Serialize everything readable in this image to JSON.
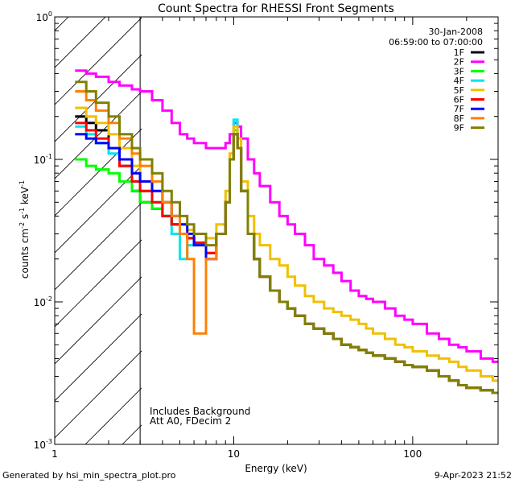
{
  "chart_data": {
    "type": "line",
    "title": "Count Spectra for RHESSI Front Segments",
    "xlabel": "Energy (keV)",
    "ylabel": "counts cm^-2 s^-1 keV^-1",
    "ylabel_parts": {
      "base": "counts cm",
      "e1": "-2",
      "mid1": " s",
      "e2": "-1",
      "mid2": " keV",
      "e3": "-1"
    },
    "xscale": "log",
    "yscale": "log",
    "xlim": [
      1,
      300
    ],
    "ylim": [
      0.001,
      1
    ],
    "x_ticks": [
      {
        "value": 1,
        "label": "1"
      },
      {
        "value": 10,
        "label": "10"
      },
      {
        "value": 100,
        "label": "100"
      }
    ],
    "y_ticks": [
      {
        "value": 0.001,
        "base": "10",
        "exp": "-3"
      },
      {
        "value": 0.01,
        "base": "10",
        "exp": "-2"
      },
      {
        "value": 0.1,
        "base": "10",
        "exp": "-1"
      },
      {
        "value": 1,
        "base": "10",
        "exp": "0"
      }
    ],
    "date": "30-Jan-2008",
    "time_range": "06:59:00 to 07:00:00",
    "legend_position": "top-right",
    "annotations": [
      "Includes Background",
      "Att A0, FDecim 2"
    ],
    "excluded_region_below_keV": 3,
    "series": [
      {
        "name": "1F",
        "color": "#000000",
        "x": [
          1.3,
          1.5,
          1.7,
          2.0,
          2.3,
          2.7,
          3.0,
          3.5,
          4.0,
          4.5,
          5.0,
          5.5,
          6.0,
          7.0,
          8.0,
          9.0,
          9.5,
          10.0,
          10.5,
          11.0,
          12,
          13,
          14,
          16,
          18,
          20,
          22,
          25,
          28,
          32,
          36,
          40,
          45,
          50,
          55,
          60,
          70,
          80,
          90,
          100,
          120,
          140,
          160,
          180,
          200,
          240,
          280
        ],
        "y": [
          0.2,
          0.18,
          0.16,
          0.12,
          0.09,
          0.06,
          0.05,
          0.045,
          0.04,
          0.035,
          0.03,
          0.028,
          0.026,
          0.022,
          0.03,
          0.05,
          0.1,
          0.15,
          0.12,
          0.06,
          0.03,
          0.02,
          0.015,
          0.012,
          0.01,
          0.009,
          0.008,
          0.007,
          0.0065,
          0.006,
          0.0055,
          0.005,
          0.0048,
          0.0046,
          0.0044,
          0.0042,
          0.004,
          0.0038,
          0.0036,
          0.0035,
          0.0033,
          0.003,
          0.0028,
          0.0026,
          0.0025,
          0.0024,
          0.0023
        ]
      },
      {
        "name": "2F",
        "color": "#ff00ff",
        "x": [
          1.3,
          1.5,
          1.7,
          2.0,
          2.3,
          2.7,
          3.0,
          3.5,
          4.0,
          4.5,
          5.0,
          5.5,
          6.0,
          7.0,
          8.0,
          9.0,
          9.5,
          10.0,
          10.5,
          11.0,
          12,
          13,
          14,
          16,
          18,
          20,
          22,
          25,
          28,
          32,
          36,
          40,
          45,
          50,
          55,
          60,
          70,
          80,
          90,
          100,
          120,
          140,
          160,
          180,
          200,
          240,
          280
        ],
        "y": [
          0.42,
          0.4,
          0.38,
          0.35,
          0.33,
          0.31,
          0.3,
          0.26,
          0.22,
          0.18,
          0.15,
          0.14,
          0.13,
          0.12,
          0.12,
          0.13,
          0.15,
          0.18,
          0.17,
          0.14,
          0.1,
          0.08,
          0.065,
          0.05,
          0.04,
          0.035,
          0.03,
          0.025,
          0.02,
          0.018,
          0.016,
          0.014,
          0.012,
          0.011,
          0.0105,
          0.01,
          0.009,
          0.008,
          0.0075,
          0.007,
          0.006,
          0.0055,
          0.005,
          0.0048,
          0.0045,
          0.004,
          0.0038
        ]
      },
      {
        "name": "3F",
        "color": "#00ff00",
        "x": [
          1.3,
          1.5,
          1.7,
          2.0,
          2.3,
          2.7,
          3.0,
          3.5,
          4.0,
          4.5,
          5.0,
          5.5,
          6.0,
          7.0,
          8.0,
          9.0,
          9.5,
          10.0,
          10.5,
          11.0,
          12,
          13,
          14,
          16,
          18,
          20,
          22,
          25,
          28,
          32,
          36,
          40,
          45,
          50,
          55,
          60,
          70,
          80,
          90,
          100,
          120,
          140,
          160,
          180,
          200,
          240,
          280
        ],
        "y": [
          0.1,
          0.09,
          0.085,
          0.08,
          0.07,
          0.06,
          0.05,
          0.045,
          0.04,
          0.035,
          0.03,
          0.028,
          0.026,
          0.022,
          0.03,
          0.05,
          0.1,
          0.16,
          0.12,
          0.06,
          0.03,
          0.02,
          0.015,
          0.012,
          0.01,
          0.009,
          0.008,
          0.007,
          0.0065,
          0.006,
          0.0055,
          0.005,
          0.0048,
          0.0046,
          0.0044,
          0.0042,
          0.004,
          0.0038,
          0.0036,
          0.0035,
          0.0033,
          0.003,
          0.0028,
          0.0026,
          0.0025,
          0.0024,
          0.0023
        ]
      },
      {
        "name": "4F",
        "color": "#00e5ee",
        "x": [
          1.3,
          1.5,
          1.7,
          2.0,
          2.3,
          2.7,
          3.0,
          3.5,
          4.0,
          4.5,
          5.0,
          5.5,
          6.0,
          7.0,
          8.0,
          9.0,
          9.5,
          10.0,
          10.5,
          11.0,
          12,
          13,
          14,
          16,
          18,
          20,
          22,
          25,
          28,
          32,
          36,
          40,
          45,
          50,
          55,
          60,
          70,
          80,
          90,
          100,
          120,
          140,
          160,
          180,
          200,
          240,
          280
        ],
        "y": [
          0.17,
          0.15,
          0.13,
          0.11,
          0.09,
          0.07,
          0.06,
          0.05,
          0.04,
          0.03,
          0.02,
          0.025,
          0.026,
          0.022,
          0.03,
          0.05,
          0.1,
          0.19,
          0.12,
          0.06,
          0.03,
          0.02,
          0.015,
          0.012,
          0.01,
          0.009,
          0.008,
          0.007,
          0.0065,
          0.006,
          0.0055,
          0.005,
          0.0048,
          0.0046,
          0.0044,
          0.0042,
          0.004,
          0.0038,
          0.0036,
          0.0035,
          0.0033,
          0.003,
          0.0028,
          0.0026,
          0.0025,
          0.0024,
          0.0023
        ]
      },
      {
        "name": "5F",
        "color": "#f0c000",
        "x": [
          1.3,
          1.5,
          1.7,
          2.0,
          2.3,
          2.7,
          3.0,
          3.5,
          4.0,
          4.5,
          5.0,
          5.5,
          6.0,
          7.0,
          8.0,
          9.0,
          9.5,
          10.0,
          10.5,
          11.0,
          12,
          13,
          14,
          16,
          18,
          20,
          22,
          25,
          28,
          32,
          36,
          40,
          45,
          50,
          55,
          60,
          70,
          80,
          90,
          100,
          120,
          140,
          160,
          180,
          200,
          240,
          280
        ],
        "y": [
          0.23,
          0.2,
          0.18,
          0.15,
          0.12,
          0.09,
          0.07,
          0.06,
          0.05,
          0.04,
          0.035,
          0.032,
          0.03,
          0.028,
          0.035,
          0.06,
          0.11,
          0.17,
          0.14,
          0.07,
          0.04,
          0.03,
          0.025,
          0.02,
          0.018,
          0.015,
          0.013,
          0.011,
          0.01,
          0.009,
          0.0085,
          0.008,
          0.0075,
          0.007,
          0.0065,
          0.006,
          0.0055,
          0.005,
          0.0048,
          0.0045,
          0.0042,
          0.004,
          0.0038,
          0.0035,
          0.0033,
          0.003,
          0.0028
        ]
      },
      {
        "name": "6F",
        "color": "#ff0000",
        "x": [
          1.3,
          1.5,
          1.7,
          2.0,
          2.3,
          2.7,
          3.0,
          3.5,
          4.0,
          4.5,
          5.0,
          5.5,
          6.0,
          7.0,
          8.0,
          9.0,
          9.5,
          10.0,
          10.5,
          11.0,
          12,
          13,
          14,
          16,
          18,
          20,
          22,
          25,
          28,
          32,
          36,
          40,
          45,
          50,
          55,
          60,
          70,
          80,
          90,
          100,
          120,
          140,
          160,
          180,
          200,
          240,
          280
        ],
        "y": [
          0.18,
          0.16,
          0.14,
          0.12,
          0.09,
          0.07,
          0.06,
          0.05,
          0.04,
          0.035,
          0.03,
          0.028,
          0.026,
          0.022,
          0.03,
          0.05,
          0.1,
          0.15,
          0.12,
          0.06,
          0.03,
          0.02,
          0.015,
          0.012,
          0.01,
          0.009,
          0.008,
          0.007,
          0.0065,
          0.006,
          0.0055,
          0.005,
          0.0048,
          0.0046,
          0.0044,
          0.0042,
          0.004,
          0.0038,
          0.0036,
          0.0035,
          0.0033,
          0.003,
          0.0028,
          0.0026,
          0.0025,
          0.0024,
          0.0023
        ]
      },
      {
        "name": "7F",
        "color": "#0000ff",
        "x": [
          1.3,
          1.5,
          1.7,
          2.0,
          2.3,
          2.7,
          3.0,
          3.5,
          4.0,
          4.5,
          5.0,
          5.5,
          6.0,
          7.0,
          8.0,
          9.0,
          9.5,
          10.0,
          10.5,
          11.0,
          12,
          13,
          14,
          16,
          18,
          20,
          22,
          25,
          28,
          32,
          36,
          40,
          45,
          50,
          55,
          60,
          70,
          80,
          90,
          100,
          120,
          140,
          160,
          180,
          200,
          240,
          280
        ],
        "y": [
          0.15,
          0.14,
          0.13,
          0.12,
          0.1,
          0.08,
          0.07,
          0.06,
          0.05,
          0.04,
          0.035,
          0.03,
          0.025,
          0.02,
          0.03,
          0.05,
          0.1,
          0.15,
          0.12,
          0.06,
          0.03,
          0.02,
          0.015,
          0.012,
          0.01,
          0.009,
          0.008,
          0.007,
          0.0065,
          0.006,
          0.0055,
          0.005,
          0.0048,
          0.0046,
          0.0044,
          0.0042,
          0.004,
          0.0038,
          0.0036,
          0.0035,
          0.0033,
          0.003,
          0.0028,
          0.0026,
          0.0025,
          0.0024,
          0.0023
        ]
      },
      {
        "name": "8F",
        "color": "#ff8000",
        "x": [
          1.3,
          1.5,
          1.7,
          2.0,
          2.3,
          2.7,
          3.0,
          3.5,
          4.0,
          4.5,
          5.0,
          5.5,
          6.0,
          7.0,
          8.0,
          9.0,
          9.5,
          10.0,
          10.5,
          11.0,
          12,
          13,
          14,
          16,
          18,
          20,
          22,
          25,
          28,
          32,
          36,
          40,
          45,
          50,
          55,
          60,
          70,
          80,
          90,
          100,
          120,
          140,
          160,
          180,
          200,
          240,
          280
        ],
        "y": [
          0.3,
          0.26,
          0.22,
          0.18,
          0.14,
          0.11,
          0.09,
          0.07,
          0.05,
          0.04,
          0.03,
          0.02,
          0.006,
          0.02,
          0.03,
          0.05,
          0.1,
          0.15,
          0.12,
          0.06,
          0.03,
          0.02,
          0.015,
          0.012,
          0.01,
          0.009,
          0.008,
          0.007,
          0.0065,
          0.006,
          0.0055,
          0.005,
          0.0048,
          0.0046,
          0.0044,
          0.0042,
          0.004,
          0.0038,
          0.0036,
          0.0035,
          0.0033,
          0.003,
          0.0028,
          0.0026,
          0.0025,
          0.0024,
          0.0023
        ]
      },
      {
        "name": "9F",
        "color": "#808000",
        "x": [
          1.3,
          1.5,
          1.7,
          2.0,
          2.3,
          2.7,
          3.0,
          3.5,
          4.0,
          4.5,
          5.0,
          5.5,
          6.0,
          7.0,
          8.0,
          9.0,
          9.5,
          10.0,
          10.5,
          11.0,
          12,
          13,
          14,
          16,
          18,
          20,
          22,
          25,
          28,
          32,
          36,
          40,
          45,
          50,
          55,
          60,
          70,
          80,
          90,
          100,
          120,
          140,
          160,
          180,
          200,
          240,
          280
        ],
        "y": [
          0.35,
          0.3,
          0.25,
          0.2,
          0.15,
          0.12,
          0.1,
          0.08,
          0.06,
          0.05,
          0.04,
          0.035,
          0.03,
          0.025,
          0.03,
          0.05,
          0.1,
          0.15,
          0.12,
          0.06,
          0.03,
          0.02,
          0.015,
          0.012,
          0.01,
          0.009,
          0.008,
          0.007,
          0.0065,
          0.006,
          0.0055,
          0.005,
          0.0048,
          0.0046,
          0.0044,
          0.0042,
          0.004,
          0.0038,
          0.0036,
          0.0035,
          0.0033,
          0.003,
          0.0028,
          0.0026,
          0.0025,
          0.0024,
          0.0023
        ]
      }
    ]
  },
  "footer": {
    "generated_by": "Generated by hsi_min_spectra_plot.pro",
    "timestamp": "9-Apr-2023 21:52"
  }
}
